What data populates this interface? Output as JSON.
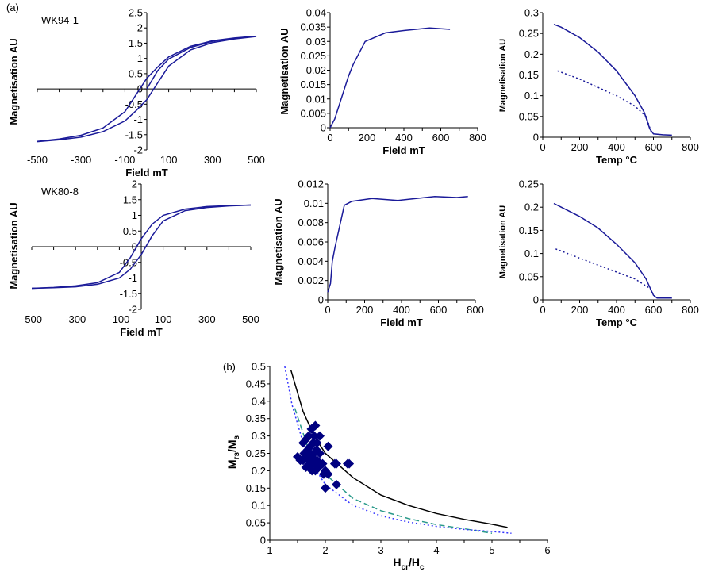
{
  "panel_labels": {
    "a": "(a)",
    "b": "(b)",
    "sample1": "WK94-1",
    "sample2": "WK80-8"
  },
  "colors": {
    "curve": "#1a1a99",
    "points": "#000080",
    "sd_line": "#000000",
    "dashed": "#2a9a8a",
    "dotted": "#3333ff"
  },
  "chart_data": [
    {
      "id": "hyst1",
      "type": "line",
      "xlabel": "Field mT",
      "ylabel": "Magnetisation AU",
      "xlim": [
        -500,
        500
      ],
      "ylim": [
        -2,
        2.5
      ],
      "xticks": [
        -500,
        -300,
        -100,
        100,
        300,
        500
      ],
      "yticks": [
        -2,
        -1.5,
        -1,
        -0.5,
        0,
        0.5,
        1,
        1.5,
        2,
        2.5
      ],
      "series": [
        {
          "style": "solid",
          "x": [
            -500,
            -400,
            -300,
            -200,
            -100,
            -50,
            0,
            50,
            100,
            200,
            300,
            400,
            500
          ],
          "y": [
            -1.72,
            -1.64,
            -1.52,
            -1.28,
            -0.75,
            -0.2,
            0.35,
            0.72,
            1.05,
            1.4,
            1.58,
            1.67,
            1.73
          ]
        },
        {
          "style": "solid",
          "x": [
            -500,
            -400,
            -300,
            -200,
            -100,
            -50,
            0,
            50,
            100,
            200,
            300,
            400,
            500
          ],
          "y": [
            -1.73,
            -1.67,
            -1.58,
            -1.4,
            -1.05,
            -0.72,
            -0.35,
            0.2,
            0.75,
            1.28,
            1.52,
            1.64,
            1.72
          ]
        },
        {
          "style": "solid",
          "x": [
            0,
            50,
            100,
            200,
            300,
            400,
            500
          ],
          "y": [
            0,
            0.6,
            0.98,
            1.36,
            1.56,
            1.66,
            1.73
          ]
        }
      ]
    },
    {
      "id": "irm1",
      "type": "line",
      "xlabel": "Field mT",
      "ylabel": "Magnetisation AU",
      "xlim": [
        0,
        800
      ],
      "ylim": [
        0,
        0.04
      ],
      "xticks": [
        0,
        200,
        400,
        600,
        800
      ],
      "yticks": [
        0,
        0.005,
        0.01,
        0.015,
        0.02,
        0.025,
        0.03,
        0.035,
        0.04
      ],
      "series": [
        {
          "style": "solid",
          "x": [
            0,
            25,
            50,
            100,
            125,
            190,
            300,
            400,
            540,
            650
          ],
          "y": [
            0,
            0.003,
            0.008,
            0.018,
            0.022,
            0.03,
            0.033,
            0.0338,
            0.0347,
            0.0342
          ]
        }
      ]
    },
    {
      "id": "thermo1",
      "type": "line",
      "xlabel": "Temp °C",
      "ylabel": "Magnetisation AU",
      "xlim": [
        0,
        800
      ],
      "ylim": [
        0,
        0.3
      ],
      "xticks": [
        0,
        200,
        400,
        600,
        800
      ],
      "yticks": [
        0,
        0.05,
        0.1,
        0.15,
        0.2,
        0.25,
        0.3
      ],
      "series": [
        {
          "style": "solid",
          "x": [
            60,
            100,
            200,
            300,
            400,
            450,
            500,
            550,
            580,
            600,
            650,
            700
          ],
          "y": [
            0.272,
            0.265,
            0.24,
            0.205,
            0.16,
            0.13,
            0.1,
            0.06,
            0.02,
            0.008,
            0.006,
            0.005
          ]
        },
        {
          "style": "dotted",
          "x": [
            80,
            200,
            300,
            400,
            500,
            560,
            590
          ],
          "y": [
            0.16,
            0.14,
            0.12,
            0.1,
            0.075,
            0.05,
            0.01
          ]
        }
      ]
    },
    {
      "id": "hyst2",
      "type": "line",
      "xlabel": "Field mT",
      "ylabel": "Magnetisation AU",
      "xlim": [
        -500,
        500
      ],
      "ylim": [
        -2,
        2
      ],
      "xticks": [
        -500,
        -300,
        -100,
        100,
        300,
        500
      ],
      "yticks": [
        -2,
        -1.5,
        -1,
        -0.5,
        0,
        0.5,
        1,
        1.5,
        2
      ],
      "series": [
        {
          "style": "solid",
          "x": [
            -500,
            -400,
            -300,
            -200,
            -100,
            -50,
            0,
            50,
            100,
            200,
            300,
            400,
            500
          ],
          "y": [
            -1.33,
            -1.3,
            -1.25,
            -1.15,
            -0.82,
            -0.35,
            0.25,
            0.72,
            1.0,
            1.2,
            1.28,
            1.31,
            1.33
          ]
        },
        {
          "style": "solid",
          "x": [
            -500,
            -400,
            -300,
            -200,
            -100,
            -50,
            0,
            50,
            100,
            200,
            300,
            400,
            500
          ],
          "y": [
            -1.33,
            -1.31,
            -1.28,
            -1.2,
            -1.0,
            -0.72,
            -0.25,
            0.35,
            0.82,
            1.15,
            1.25,
            1.3,
            1.33
          ]
        }
      ]
    },
    {
      "id": "irm2",
      "type": "line",
      "xlabel": "Field mT",
      "ylabel": "Magnetisation AU",
      "xlim": [
        0,
        800
      ],
      "ylim": [
        0,
        0.012
      ],
      "xticks": [
        0,
        200,
        400,
        600,
        800
      ],
      "yticks": [
        0,
        0.002,
        0.004,
        0.006,
        0.008,
        0.01,
        0.012
      ],
      "series": [
        {
          "style": "solid",
          "x": [
            0,
            15,
            25,
            40,
            90,
            130,
            240,
            380,
            580,
            700,
            760
          ],
          "y": [
            0.0008,
            0.0017,
            0.004,
            0.0055,
            0.0098,
            0.0102,
            0.0105,
            0.0103,
            0.0107,
            0.0106,
            0.0107
          ]
        }
      ]
    },
    {
      "id": "thermo2",
      "type": "line",
      "xlabel": "Temp °C",
      "ylabel": "Magnetisation AU",
      "xlim": [
        0,
        800
      ],
      "ylim": [
        0,
        0.25
      ],
      "xticks": [
        0,
        200,
        400,
        600,
        800
      ],
      "yticks": [
        0,
        0.05,
        0.1,
        0.15,
        0.2,
        0.25
      ],
      "series": [
        {
          "style": "solid",
          "x": [
            60,
            100,
            200,
            300,
            400,
            500,
            560,
            600,
            620,
            700
          ],
          "y": [
            0.208,
            0.2,
            0.18,
            0.155,
            0.12,
            0.08,
            0.045,
            0.01,
            0.004,
            0.004
          ]
        },
        {
          "style": "dotted",
          "x": [
            70,
            200,
            300,
            400,
            500,
            580,
            610
          ],
          "y": [
            0.11,
            0.09,
            0.075,
            0.06,
            0.045,
            0.025,
            0.005
          ]
        }
      ]
    },
    {
      "id": "day",
      "type": "scatter",
      "xlabel": "Hcr/Hc",
      "ylabel": "Mrs/Ms",
      "xlim": [
        1,
        6
      ],
      "ylim": [
        0,
        0.5
      ],
      "xticks": [
        1,
        2,
        3,
        4,
        5,
        6
      ],
      "yticks": [
        0,
        0.05,
        0.1,
        0.15,
        0.2,
        0.25,
        0.3,
        0.35,
        0.4,
        0.45,
        0.5
      ],
      "series": [
        {
          "style": "solid",
          "x": [
            1.38,
            1.6,
            1.8,
            2,
            2.5,
            3,
            3.5,
            4,
            4.5,
            5,
            5.28
          ],
          "y": [
            0.49,
            0.37,
            0.3,
            0.25,
            0.18,
            0.13,
            0.1,
            0.077,
            0.06,
            0.046,
            0.037
          ]
        },
        {
          "style": "dashed",
          "x": [
            1.45,
            1.7,
            2,
            2.5,
            3,
            3.5,
            4,
            4.5,
            5
          ],
          "y": [
            0.38,
            0.26,
            0.19,
            0.12,
            0.085,
            0.062,
            0.045,
            0.033,
            0.02
          ]
        },
        {
          "style": "dotted",
          "x": [
            1.27,
            1.4,
            1.6,
            1.8,
            2,
            2.5,
            3,
            3.5,
            4,
            4.5,
            5,
            5.35
          ],
          "y": [
            0.5,
            0.39,
            0.28,
            0.21,
            0.16,
            0.1,
            0.07,
            0.052,
            0.04,
            0.031,
            0.025,
            0.02
          ]
        },
        {
          "style": "points",
          "x": [
            1.5,
            1.55,
            1.6,
            1.62,
            1.65,
            1.65,
            1.68,
            1.7,
            1.7,
            1.72,
            1.73,
            1.75,
            1.75,
            1.76,
            1.78,
            1.78,
            1.8,
            1.8,
            1.82,
            1.82,
            1.84,
            1.85,
            1.88,
            1.9,
            1.9,
            1.95,
            1.97,
            2.0,
            2.0,
            2.05,
            2.05,
            2.17,
            2.2,
            2.2,
            2.4,
            2.43,
            1.85,
            1.68,
            1.72,
            1.6,
            1.77,
            1.7
          ],
          "y": [
            0.24,
            0.23,
            0.28,
            0.25,
            0.21,
            0.29,
            0.26,
            0.3,
            0.23,
            0.22,
            0.27,
            0.32,
            0.24,
            0.2,
            0.28,
            0.22,
            0.25,
            0.3,
            0.2,
            0.33,
            0.26,
            0.23,
            0.21,
            0.3,
            0.25,
            0.22,
            0.19,
            0.2,
            0.15,
            0.27,
            0.19,
            0.22,
            0.22,
            0.16,
            0.22,
            0.22,
            0.28,
            0.24,
            0.25,
            0.23,
            0.23,
            0.21
          ]
        }
      ]
    }
  ]
}
